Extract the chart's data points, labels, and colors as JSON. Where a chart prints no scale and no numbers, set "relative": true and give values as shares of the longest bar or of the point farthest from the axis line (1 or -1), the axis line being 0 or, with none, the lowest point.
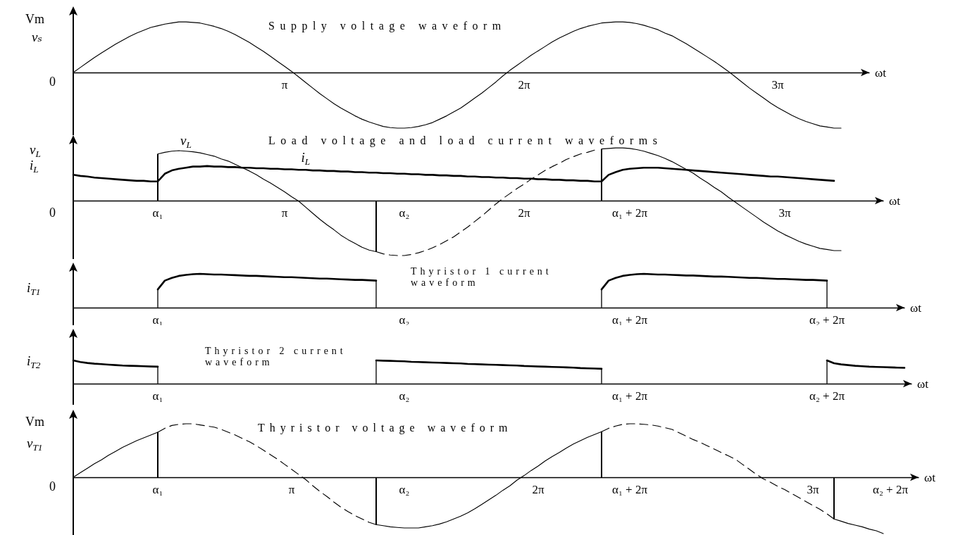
{
  "chart_data": [
    {
      "type": "line",
      "title": "Supply voltage waveform",
      "xlabel": "ωt",
      "ylabel": "vₛ",
      "marker": "none",
      "relative": true,
      "color": "#000000",
      "categories": [
        null,
        null,
        null,
        null,
        null,
        null,
        null,
        null,
        null,
        null,
        null,
        null,
        null,
        null,
        null,
        null,
        null,
        null,
        null,
        null,
        null,
        null,
        null,
        null,
        null,
        null,
        null,
        null,
        null,
        null,
        "π",
        null,
        null,
        null,
        null,
        null,
        null,
        null,
        null,
        null,
        null,
        null,
        null,
        null,
        null,
        null,
        null,
        null,
        null,
        null,
        null,
        null,
        null,
        null,
        null,
        null,
        null,
        null,
        null,
        null,
        null,
        null,
        null,
        null,
        "2π",
        null,
        null,
        null,
        null,
        null,
        null,
        null,
        null,
        null,
        null,
        null,
        null,
        null,
        null,
        null,
        null,
        null,
        null,
        null,
        null,
        null,
        null,
        null,
        null,
        null,
        null,
        null,
        null,
        null,
        null,
        null,
        null,
        null,
        null,
        null,
        "3π",
        null,
        null,
        null,
        null,
        null,
        null,
        null,
        null,
        null,
        null,
        null,
        null,
        null
      ],
      "values": [
        0,
        0.09,
        0.18,
        0.27,
        0.35,
        0.43,
        0.51,
        0.58,
        0.65,
        0.71,
        0.76,
        0.81,
        0.84,
        0.87,
        0.89,
        0.91,
        0.91,
        0.9,
        0.89,
        0.86,
        0.83,
        0.79,
        0.74,
        0.68,
        0.61,
        0.54,
        0.46,
        0.38,
        0.29,
        0.2,
        0.11,
        0.02,
        -0.08,
        -0.18,
        -0.28,
        -0.38,
        -0.47,
        -0.56,
        -0.64,
        -0.71,
        -0.78,
        -0.84,
        -0.89,
        -0.93,
        -0.97,
        -0.99,
        -1,
        -1,
        -0.99,
        -0.97,
        -0.94,
        -0.9,
        -0.84,
        -0.78,
        -0.71,
        -0.64,
        -0.55,
        -0.46,
        -0.37,
        -0.27,
        -0.17,
        -0.06,
        0.04,
        0.13,
        0.22,
        0.31,
        0.39,
        0.47,
        0.55,
        0.62,
        0.68,
        0.74,
        0.79,
        0.83,
        0.86,
        0.89,
        0.9,
        0.91,
        0.91,
        0.9,
        0.88,
        0.85,
        0.81,
        0.77,
        0.71,
        0.66,
        0.59,
        0.52,
        0.44,
        0.36,
        0.28,
        0.2,
        0.11,
        0.02,
        -0.08,
        -0.18,
        -0.28,
        -0.37,
        -0.46,
        -0.55,
        -0.63,
        -0.7,
        -0.77,
        -0.83,
        -0.88,
        -0.92,
        -0.96,
        -0.98,
        -1,
        -1,
        null,
        null,
        null,
        null
      ],
      "annotations": [
        "Vm",
        "0"
      ]
    },
    {
      "type": "line",
      "title": "Load voltage and load current waveforms",
      "xlabel": "ωt",
      "ylabel": "v$_{L}$ i$_{L}$",
      "marker": "none",
      "relative": true,
      "categories": [
        null,
        null,
        null,
        null,
        null,
        null,
        null,
        null,
        null,
        null,
        null,
        null,
        "α₁",
        null,
        null,
        null,
        null,
        null,
        null,
        null,
        null,
        null,
        null,
        null,
        null,
        null,
        null,
        null,
        null,
        null,
        "π",
        null,
        null,
        null,
        null,
        null,
        null,
        null,
        null,
        null,
        null,
        null,
        null,
        null,
        null,
        null,
        null,
        "α₂",
        null,
        null,
        null,
        null,
        null,
        null,
        null,
        null,
        null,
        null,
        null,
        null,
        null,
        null,
        null,
        null,
        "2π",
        null,
        null,
        null,
        null,
        null,
        null,
        null,
        null,
        null,
        null,
        null,
        null,
        null,
        null,
        "α₁ + 2π",
        null,
        null,
        null,
        null,
        null,
        null,
        null,
        null,
        null,
        null,
        null,
        null,
        null,
        null,
        null,
        null,
        null,
        null,
        null,
        null,
        null,
        "3π",
        null,
        null,
        null,
        null,
        null,
        null,
        null,
        null,
        null,
        null,
        null,
        null,
        null,
        null
      ],
      "annotations": [
        "0"
      ],
      "series": [
        {
          "name": "v$_{L}$",
          "color": "#000000",
          "values": [
            null,
            null,
            null,
            null,
            null,
            null,
            null,
            null,
            null,
            null,
            null,
            null,
            0.85,
            0.88,
            0.9,
            0.91,
            0.9,
            0.89,
            0.87,
            0.84,
            0.81,
            0.76,
            0.72,
            0.66,
            0.6,
            0.54,
            0.47,
            0.39,
            0.32,
            0.24,
            0.16,
            0.07,
            -0.01,
            -0.12,
            -0.23,
            -0.34,
            -0.44,
            -0.53,
            -0.63,
            -0.71,
            -0.78,
            -0.85,
            -0.9,
            -0.93,
            null,
            null,
            null,
            null,
            null,
            null,
            null,
            null,
            null,
            null,
            null,
            null,
            null,
            null,
            null,
            null,
            null,
            null,
            null,
            null,
            null,
            null,
            null,
            null,
            null,
            null,
            null,
            null,
            null,
            null,
            null,
            0.94,
            0.95,
            0.96,
            0.96,
            0.95,
            0.93,
            0.9,
            0.86,
            0.82,
            0.77,
            0.71,
            0.64,
            0.57,
            0.5,
            0.41,
            0.33,
            0.24,
            0.16,
            0.06,
            -0.03,
            -0.12,
            -0.21,
            -0.3,
            -0.39,
            -0.47,
            -0.55,
            -0.62,
            -0.68,
            -0.74,
            -0.79,
            -0.83,
            -0.87,
            -0.89,
            -0.91,
            -0.91,
            null,
            null,
            null,
            null,
            null,
            null
          ]
        },
        {
          "name": "i$_{L}$",
          "color": "#000000",
          "values": [
            0.47,
            0.45,
            0.44,
            0.42,
            0.41,
            0.4,
            0.39,
            0.38,
            0.37,
            0.36,
            0.36,
            0.35,
            0.35,
            0.49,
            0.55,
            0.58,
            0.6,
            0.62,
            0.62,
            0.63,
            0.62,
            0.62,
            0.61,
            0.61,
            0.6,
            0.6,
            0.59,
            0.59,
            0.58,
            0.58,
            0.57,
            0.57,
            0.56,
            0.56,
            0.55,
            0.55,
            0.54,
            0.54,
            0.53,
            0.53,
            0.52,
            0.52,
            0.51,
            0.51,
            0.5,
            0.5,
            0.49,
            0.49,
            0.48,
            0.48,
            0.47,
            0.47,
            0.46,
            0.46,
            0.45,
            0.45,
            0.44,
            0.44,
            0.43,
            0.43,
            0.42,
            0.42,
            0.41,
            0.41,
            0.4,
            0.4,
            0.39,
            0.39,
            0.38,
            0.38,
            0.37,
            0.37,
            0.36,
            0.36,
            0.35,
            0.35,
            0.47,
            0.52,
            0.56,
            0.58,
            0.59,
            0.6,
            0.6,
            0.6,
            0.59,
            0.58,
            0.57,
            0.56,
            0.55,
            0.54,
            0.53,
            0.52,
            0.51,
            0.5,
            0.49,
            0.48,
            0.47,
            0.46,
            0.45,
            0.44,
            0.44,
            0.43,
            0.42,
            0.41,
            0.4,
            0.39,
            0.38,
            0.37,
            0.36,
            null,
            null,
            null,
            null,
            null,
            null,
            null
          ]
        },
        {
          "color": "#000000",
          "line_style": "dashed",
          "values": [
            null,
            null,
            null,
            null,
            null,
            null,
            null,
            null,
            null,
            null,
            null,
            null,
            null,
            null,
            null,
            null,
            null,
            null,
            null,
            null,
            null,
            null,
            null,
            null,
            null,
            null,
            null,
            null,
            null,
            null,
            null,
            null,
            null,
            null,
            null,
            null,
            null,
            null,
            null,
            null,
            null,
            null,
            null,
            -0.93,
            -0.97,
            -0.99,
            -1,
            -1,
            -0.98,
            -0.95,
            -0.91,
            -0.86,
            -0.8,
            -0.73,
            -0.66,
            -0.57,
            -0.48,
            -0.38,
            -0.28,
            -0.17,
            -0.06,
            0.04,
            0.13,
            0.22,
            0.3,
            0.39,
            0.47,
            0.55,
            0.62,
            0.68,
            0.75,
            0.8,
            0.85,
            0.88,
            0.92,
            null,
            null,
            null,
            null,
            null,
            null,
            null,
            null,
            null,
            null,
            null,
            null,
            null,
            null,
            null,
            null,
            null,
            null,
            null,
            null,
            null,
            null,
            null,
            null,
            null,
            null,
            null,
            null,
            null,
            null,
            null,
            null,
            null,
            null,
            null,
            null,
            null,
            null,
            null,
            null,
            null
          ]
        },
        {
          "type": "bar",
          "color": "#000000",
          "values": [
            null,
            null,
            null,
            null,
            null,
            null,
            null,
            null,
            null,
            null,
            null,
            null,
            0.85,
            null,
            null,
            null,
            null,
            null,
            null,
            null,
            null,
            null,
            null,
            null,
            null,
            null,
            null,
            null,
            null,
            null,
            null,
            null,
            null,
            null,
            null,
            null,
            null,
            null,
            null,
            null,
            null,
            null,
            null,
            -0.93,
            null,
            null,
            null,
            null,
            null,
            null,
            null,
            null,
            null,
            null,
            null,
            null,
            null,
            null,
            null,
            null,
            null,
            null,
            null,
            null,
            null,
            null,
            null,
            null,
            null,
            null,
            null,
            null,
            null,
            null,
            null,
            0.94,
            null,
            null,
            null,
            null,
            null,
            null,
            null,
            null,
            null,
            null,
            null,
            null,
            null,
            null,
            null,
            null,
            null,
            null,
            null,
            null,
            null,
            null,
            null,
            null,
            null,
            null,
            null,
            null,
            null,
            null,
            null,
            null,
            null,
            null,
            null,
            null,
            null,
            null,
            null,
            null
          ]
        }
      ]
    },
    {
      "type": "line",
      "title": "Thyristor 1 current waveform",
      "xlabel": "ωt",
      "ylabel": "i$_{T1}$",
      "marker": "none",
      "relative": true,
      "categories": [
        null,
        null,
        null,
        null,
        null,
        null,
        null,
        null,
        null,
        null,
        null,
        null,
        "α₁",
        null,
        null,
        null,
        null,
        null,
        null,
        null,
        null,
        null,
        null,
        null,
        null,
        null,
        null,
        null,
        null,
        null,
        null,
        null,
        null,
        null,
        null,
        null,
        null,
        null,
        null,
        null,
        null,
        null,
        null,
        null,
        null,
        null,
        null,
        "α₂",
        null,
        null,
        null,
        null,
        null,
        null,
        null,
        null,
        null,
        null,
        null,
        null,
        null,
        null,
        null,
        null,
        null,
        null,
        null,
        null,
        null,
        null,
        null,
        null,
        null,
        null,
        null,
        null,
        null,
        null,
        null,
        "α₁ + 2π",
        null,
        null,
        null,
        null,
        null,
        null,
        null,
        null,
        null,
        null,
        null,
        null,
        null,
        null,
        null,
        null,
        null,
        null,
        null,
        null,
        null,
        null,
        null,
        null,
        null,
        null,
        null,
        "α₂ + 2π",
        null,
        null,
        null,
        null,
        null,
        null,
        null,
        null,
        null,
        null,
        null
      ],
      "series": [
        {
          "color": "#000000",
          "values": [
            null,
            null,
            null,
            null,
            null,
            null,
            null,
            null,
            null,
            null,
            null,
            null,
            0.54,
            0.8,
            0.88,
            0.94,
            0.97,
            0.99,
            1,
            0.99,
            0.98,
            0.98,
            0.97,
            0.96,
            0.95,
            0.94,
            0.94,
            0.93,
            0.92,
            0.91,
            0.9,
            0.9,
            0.89,
            0.88,
            0.87,
            0.86,
            0.86,
            0.85,
            0.84,
            0.83,
            0.82,
            0.82,
            0.81,
            0.8,
            null,
            null,
            null,
            null,
            null,
            null,
            null,
            null,
            null,
            null,
            null,
            null,
            null,
            null,
            null,
            null,
            null,
            null,
            null,
            null,
            null,
            null,
            null,
            null,
            null,
            null,
            null,
            null,
            null,
            null,
            null,
            0.54,
            0.8,
            0.88,
            0.94,
            0.97,
            0.99,
            1,
            0.99,
            0.98,
            0.98,
            0.97,
            0.96,
            0.95,
            0.95,
            0.94,
            0.93,
            0.92,
            0.92,
            0.91,
            0.9,
            0.89,
            0.88,
            0.88,
            0.87,
            0.86,
            0.85,
            0.85,
            0.84,
            0.83,
            0.82,
            0.82,
            0.81,
            0.8,
            null,
            null,
            null,
            null,
            null,
            null,
            null,
            null,
            null,
            null,
            null
          ]
        },
        {
          "type": "bar",
          "color": "#555555",
          "values": [
            null,
            null,
            null,
            null,
            null,
            null,
            null,
            null,
            null,
            null,
            null,
            null,
            0.54,
            null,
            null,
            null,
            null,
            null,
            null,
            null,
            null,
            null,
            null,
            null,
            null,
            null,
            null,
            null,
            null,
            null,
            null,
            null,
            null,
            null,
            null,
            null,
            null,
            null,
            null,
            null,
            null,
            null,
            null,
            0.8,
            null,
            null,
            null,
            null,
            null,
            null,
            null,
            null,
            null,
            null,
            null,
            null,
            null,
            null,
            null,
            null,
            null,
            null,
            null,
            null,
            null,
            null,
            null,
            null,
            null,
            null,
            null,
            null,
            null,
            null,
            null,
            0.54,
            null,
            null,
            null,
            null,
            null,
            null,
            null,
            null,
            null,
            null,
            null,
            null,
            null,
            null,
            null,
            null,
            null,
            null,
            null,
            null,
            null,
            null,
            null,
            null,
            null,
            null,
            null,
            null,
            null,
            null,
            null,
            0.8,
            null,
            null,
            null,
            null,
            null,
            null,
            null,
            null,
            null,
            null,
            null
          ]
        }
      ]
    },
    {
      "type": "line",
      "title": "Thyristor 2 current waveform",
      "xlabel": "ωt",
      "ylabel": "i$_{T2}$",
      "marker": "none",
      "relative": true,
      "categories": [
        null,
        null,
        null,
        null,
        null,
        null,
        null,
        null,
        null,
        null,
        null,
        null,
        "α₁",
        null,
        null,
        null,
        null,
        null,
        null,
        null,
        null,
        null,
        null,
        null,
        null,
        null,
        null,
        null,
        null,
        null,
        null,
        null,
        null,
        null,
        null,
        null,
        null,
        null,
        null,
        null,
        null,
        null,
        null,
        null,
        null,
        null,
        null,
        "α₂",
        null,
        null,
        null,
        null,
        null,
        null,
        null,
        null,
        null,
        null,
        null,
        null,
        null,
        null,
        null,
        null,
        null,
        null,
        null,
        null,
        null,
        null,
        null,
        null,
        null,
        null,
        null,
        null,
        null,
        null,
        null,
        "α₁ + 2π",
        null,
        null,
        null,
        null,
        null,
        null,
        null,
        null,
        null,
        null,
        null,
        null,
        null,
        null,
        null,
        null,
        null,
        null,
        null,
        null,
        null,
        null,
        null,
        null,
        null,
        null,
        null,
        "α₂ + 2π",
        null,
        null,
        null,
        null,
        null,
        null,
        null,
        null,
        null,
        null,
        null,
        null
      ],
      "series": [
        {
          "color": "#000000",
          "values": [
            1,
            0.93,
            0.89,
            0.86,
            0.84,
            0.82,
            0.8,
            0.78,
            0.77,
            0.76,
            0.75,
            0.74,
            0.73,
            null,
            null,
            null,
            null,
            null,
            null,
            null,
            null,
            null,
            null,
            null,
            null,
            null,
            null,
            null,
            null,
            null,
            null,
            null,
            null,
            null,
            null,
            null,
            null,
            null,
            null,
            null,
            null,
            null,
            null,
            1,
            0.99,
            0.98,
            0.97,
            0.96,
            0.94,
            0.93,
            0.92,
            0.91,
            0.9,
            0.89,
            0.88,
            0.87,
            0.85,
            0.84,
            0.83,
            0.82,
            0.81,
            0.8,
            0.79,
            0.78,
            0.76,
            0.75,
            0.74,
            0.73,
            0.72,
            0.71,
            0.7,
            0.69,
            0.67,
            0.66,
            0.65,
            0.64,
            null,
            null,
            null,
            null,
            null,
            null,
            null,
            null,
            null,
            null,
            null,
            null,
            null,
            null,
            null,
            null,
            null,
            null,
            null,
            null,
            null,
            null,
            null,
            null,
            null,
            null,
            null,
            null,
            null,
            null,
            null,
            1,
            0.88,
            0.83,
            0.8,
            0.77,
            0.75,
            0.73,
            0.72,
            0.71,
            0.7,
            0.69,
            0.68,
            null
          ]
        },
        {
          "type": "bar",
          "color": "#555555",
          "values": [
            null,
            null,
            null,
            null,
            null,
            null,
            null,
            null,
            null,
            null,
            null,
            null,
            0.73,
            null,
            null,
            null,
            null,
            null,
            null,
            null,
            null,
            null,
            null,
            null,
            null,
            null,
            null,
            null,
            null,
            null,
            null,
            null,
            null,
            null,
            null,
            null,
            null,
            null,
            null,
            null,
            null,
            null,
            null,
            1,
            null,
            null,
            null,
            null,
            null,
            null,
            null,
            null,
            null,
            null,
            null,
            null,
            null,
            null,
            null,
            null,
            null,
            null,
            null,
            null,
            null,
            null,
            null,
            null,
            null,
            null,
            null,
            null,
            null,
            null,
            null,
            0.64,
            null,
            null,
            null,
            null,
            null,
            null,
            null,
            null,
            null,
            null,
            null,
            null,
            null,
            null,
            null,
            null,
            null,
            null,
            null,
            null,
            null,
            null,
            null,
            null,
            null,
            null,
            null,
            null,
            null,
            null,
            null,
            1,
            null,
            null,
            null,
            null,
            null,
            null,
            null,
            null,
            null,
            null,
            null,
            null
          ]
        }
      ]
    },
    {
      "type": "line",
      "title": "Thyristor voltage waveform",
      "xlabel": "ωt",
      "ylabel": "v$_{T1}$",
      "marker": "none",
      "relative": true,
      "categories": [
        null,
        null,
        null,
        null,
        null,
        null,
        null,
        null,
        null,
        null,
        null,
        null,
        "α₁",
        null,
        null,
        null,
        null,
        null,
        null,
        null,
        null,
        null,
        null,
        null,
        null,
        null,
        null,
        null,
        null,
        null,
        null,
        "π",
        null,
        null,
        null,
        null,
        null,
        null,
        null,
        null,
        null,
        null,
        null,
        null,
        null,
        null,
        null,
        "α₂",
        null,
        null,
        null,
        null,
        null,
        null,
        null,
        null,
        null,
        null,
        null,
        null,
        null,
        null,
        null,
        null,
        null,
        null,
        "2π",
        null,
        null,
        null,
        null,
        null,
        null,
        null,
        null,
        null,
        null,
        null,
        null,
        "α₁ + 2π",
        null,
        null,
        null,
        null,
        null,
        null,
        null,
        null,
        null,
        null,
        null,
        null,
        null,
        null,
        null,
        null,
        null,
        null,
        null,
        null,
        null,
        null,
        null,
        null,
        null,
        "3π",
        null,
        null,
        null,
        null,
        null,
        null,
        null,
        null,
        null,
        null,
        "α₂ + 2π",
        null,
        null,
        null,
        null
      ],
      "annotations": [
        "Vm",
        "0"
      ],
      "series": [
        {
          "color": "#000000",
          "values": [
            0,
            0.08,
            0.16,
            0.24,
            0.31,
            0.39,
            0.46,
            0.53,
            0.59,
            0.65,
            0.7,
            0.75,
            0.8,
            null,
            null,
            null,
            null,
            null,
            null,
            null,
            null,
            null,
            null,
            null,
            null,
            null,
            null,
            null,
            null,
            null,
            null,
            null,
            null,
            null,
            null,
            null,
            null,
            null,
            null,
            null,
            null,
            null,
            null,
            -0.84,
            -0.86,
            -0.88,
            -0.89,
            -0.9,
            -0.9,
            -0.9,
            -0.88,
            -0.86,
            -0.83,
            -0.79,
            -0.74,
            -0.69,
            -0.63,
            -0.56,
            -0.48,
            -0.4,
            -0.32,
            -0.23,
            -0.15,
            -0.05,
            0.03,
            0.12,
            0.2,
            0.29,
            0.37,
            0.44,
            0.52,
            0.59,
            0.65,
            0.71,
            0.76,
            0.81,
            null,
            null,
            null,
            null,
            null,
            null,
            null,
            null,
            null,
            null,
            null,
            null,
            null,
            null,
            null,
            null,
            null,
            null,
            null,
            null,
            null,
            null,
            null,
            null,
            null,
            null,
            null,
            null,
            null,
            null,
            null,
            null,
            -0.74,
            -0.78,
            -0.82,
            -0.85,
            -0.88,
            -0.92,
            -0.95,
            -1,
            null,
            null,
            null,
            null,
            null
          ]
        },
        {
          "color": "#000000",
          "line_style": "dashed",
          "values": [
            null,
            null,
            null,
            null,
            null,
            null,
            null,
            null,
            null,
            null,
            null,
            null,
            0.8,
            0.87,
            0.92,
            0.94,
            0.95,
            0.95,
            0.93,
            0.91,
            0.89,
            0.85,
            0.8,
            0.75,
            0.69,
            0.63,
            0.56,
            0.48,
            0.4,
            0.32,
            0.23,
            0.14,
            0.05,
            -0.04,
            -0.15,
            -0.25,
            -0.34,
            -0.44,
            -0.53,
            -0.61,
            -0.68,
            -0.74,
            -0.8,
            -0.84,
            null,
            null,
            null,
            null,
            null,
            null,
            null,
            null,
            null,
            null,
            null,
            null,
            null,
            null,
            null,
            null,
            null,
            null,
            null,
            null,
            null,
            null,
            null,
            null,
            null,
            null,
            null,
            null,
            null,
            null,
            null,
            null,
            null,
            null,
            null,
            null,
            null,
            null,
            null,
            null,
            null,
            null,
            null,
            null,
            null,
            null,
            null,
            null,
            null,
            null,
            null,
            null,
            null,
            null,
            null,
            null,
            null,
            null,
            null,
            null,
            null,
            null,
            null,
            null,
            null,
            null,
            null,
            null,
            null,
            null,
            null,
            null,
            null,
            null,
            null,
            null,
            null
          ]
        },
        {
          "color": "#000000",
          "line_style": "dashed",
          "values": [
            null,
            null,
            null,
            null,
            null,
            null,
            null,
            null,
            null,
            null,
            null,
            null,
            null,
            null,
            null,
            null,
            null,
            null,
            null,
            null,
            null,
            null,
            null,
            null,
            null,
            null,
            null,
            null,
            null,
            null,
            null,
            null,
            null,
            null,
            null,
            null,
            null,
            null,
            null,
            null,
            null,
            null,
            null,
            null,
            null,
            null,
            null,
            null,
            null,
            null,
            null,
            null,
            null,
            null,
            null,
            null,
            null,
            null,
            null,
            null,
            null,
            null,
            null,
            null,
            null,
            null,
            null,
            null,
            null,
            null,
            null,
            null,
            null,
            null,
            null,
            0.81,
            0.87,
            0.91,
            0.94,
            0.95,
            0.95,
            0.94,
            0.93,
            0.91,
            0.88,
            0.85,
            0.79,
            0.73,
            0.67,
            0.62,
            0.56,
            0.5,
            0.44,
            0.38,
            0.32,
            0.23,
            0.14,
            0.05,
            -0.03,
            -0.09,
            -0.16,
            -0.22,
            -0.29,
            -0.36,
            -0.43,
            -0.5,
            -0.57,
            -0.65,
            -0.74,
            null,
            null,
            null,
            null,
            null,
            null,
            null,
            null,
            null,
            null,
            null,
            null
          ]
        },
        {
          "type": "bar",
          "color": "#000000",
          "values": [
            null,
            null,
            null,
            null,
            null,
            null,
            null,
            null,
            null,
            null,
            null,
            null,
            0.8,
            null,
            null,
            null,
            null,
            null,
            null,
            null,
            null,
            null,
            null,
            null,
            null,
            null,
            null,
            null,
            null,
            null,
            null,
            null,
            null,
            null,
            null,
            null,
            null,
            null,
            null,
            null,
            null,
            null,
            null,
            -0.84,
            null,
            null,
            null,
            null,
            null,
            null,
            null,
            null,
            null,
            null,
            null,
            null,
            null,
            null,
            null,
            null,
            null,
            null,
            null,
            null,
            null,
            null,
            null,
            null,
            null,
            null,
            null,
            null,
            null,
            null,
            null,
            0.81,
            null,
            null,
            null,
            null,
            null,
            null,
            null,
            null,
            null,
            null,
            null,
            null,
            null,
            null,
            null,
            null,
            null,
            null,
            null,
            null,
            null,
            null,
            null,
            null,
            null,
            null,
            null,
            null,
            null,
            null,
            null,
            null,
            -0.74,
            null,
            null,
            null,
            null,
            null,
            null,
            null,
            null,
            null,
            null,
            null,
            null
          ]
        }
      ]
    }
  ]
}
